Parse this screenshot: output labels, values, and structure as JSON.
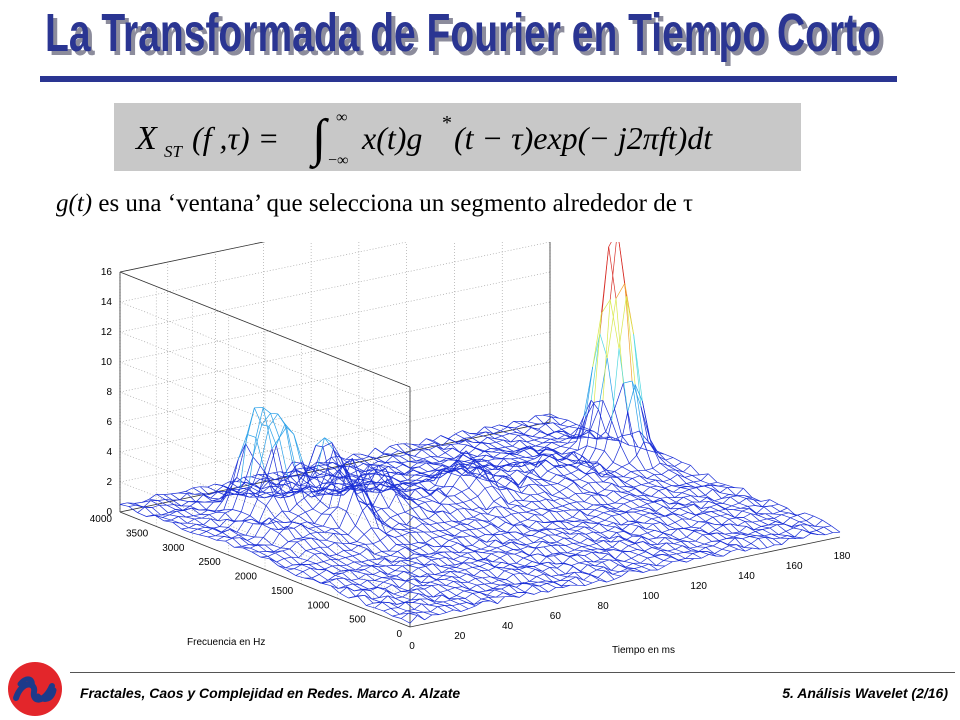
{
  "slide": {
    "title": "La Transformada de Fourier en Tiempo Corto",
    "formula": {
      "lhs": "X",
      "lhs_sub": "ST",
      "lhs_args": "(f ,τ) =",
      "int_upper": "∞",
      "int_lower": "−∞",
      "body_1": "x(t)g",
      "conj": "*",
      "body_2": "(t − τ)exp(− j2πft)dt"
    },
    "caption": {
      "italic_part": "g(t)",
      "text": "es una ‘ventana’ que selecciona un segmento alrededor de τ"
    },
    "footer": {
      "left": "Fractales, Caos y Complejidad en Redes. Marco A. Alzate",
      "right": "5. Análisis Wavelet  (2/16)"
    }
  },
  "chart_data": {
    "type": "surface",
    "title": "",
    "xlabel": "Tiempo en ms",
    "ylabel": "Frecuencia en Hz",
    "zlabel": "",
    "x_ticks": [
      "0",
      "20",
      "40",
      "60",
      "80",
      "100",
      "120",
      "140",
      "160",
      "180"
    ],
    "y_ticks": [
      "0",
      "500",
      "1000",
      "1500",
      "2000",
      "2500",
      "3000",
      "3500",
      "4000"
    ],
    "z_ticks": [
      "0",
      "2",
      "4",
      "6",
      "8",
      "10",
      "12",
      "14",
      "16"
    ],
    "xlim": [
      0,
      180
    ],
    "ylim": [
      0,
      4000
    ],
    "zlim": [
      0,
      16
    ],
    "grid": true,
    "colormap": "jet",
    "peaks": [
      {
        "time_ms": 168,
        "freq_hz": 2700,
        "magnitude": 15.5
      },
      {
        "time_ms": 30,
        "freq_hz": 3100,
        "magnitude": 7.0
      },
      {
        "time_ms": 38,
        "freq_hz": 3000,
        "magnitude": 6.3
      },
      {
        "time_ms": 50,
        "freq_hz": 2800,
        "magnitude": 5.0
      },
      {
        "time_ms": 45,
        "freq_hz": 2300,
        "magnitude": 4.0
      },
      {
        "time_ms": 65,
        "freq_hz": 2600,
        "magnitude": 3.0
      },
      {
        "time_ms": 100,
        "freq_hz": 2500,
        "magnitude": 2.5
      }
    ]
  }
}
